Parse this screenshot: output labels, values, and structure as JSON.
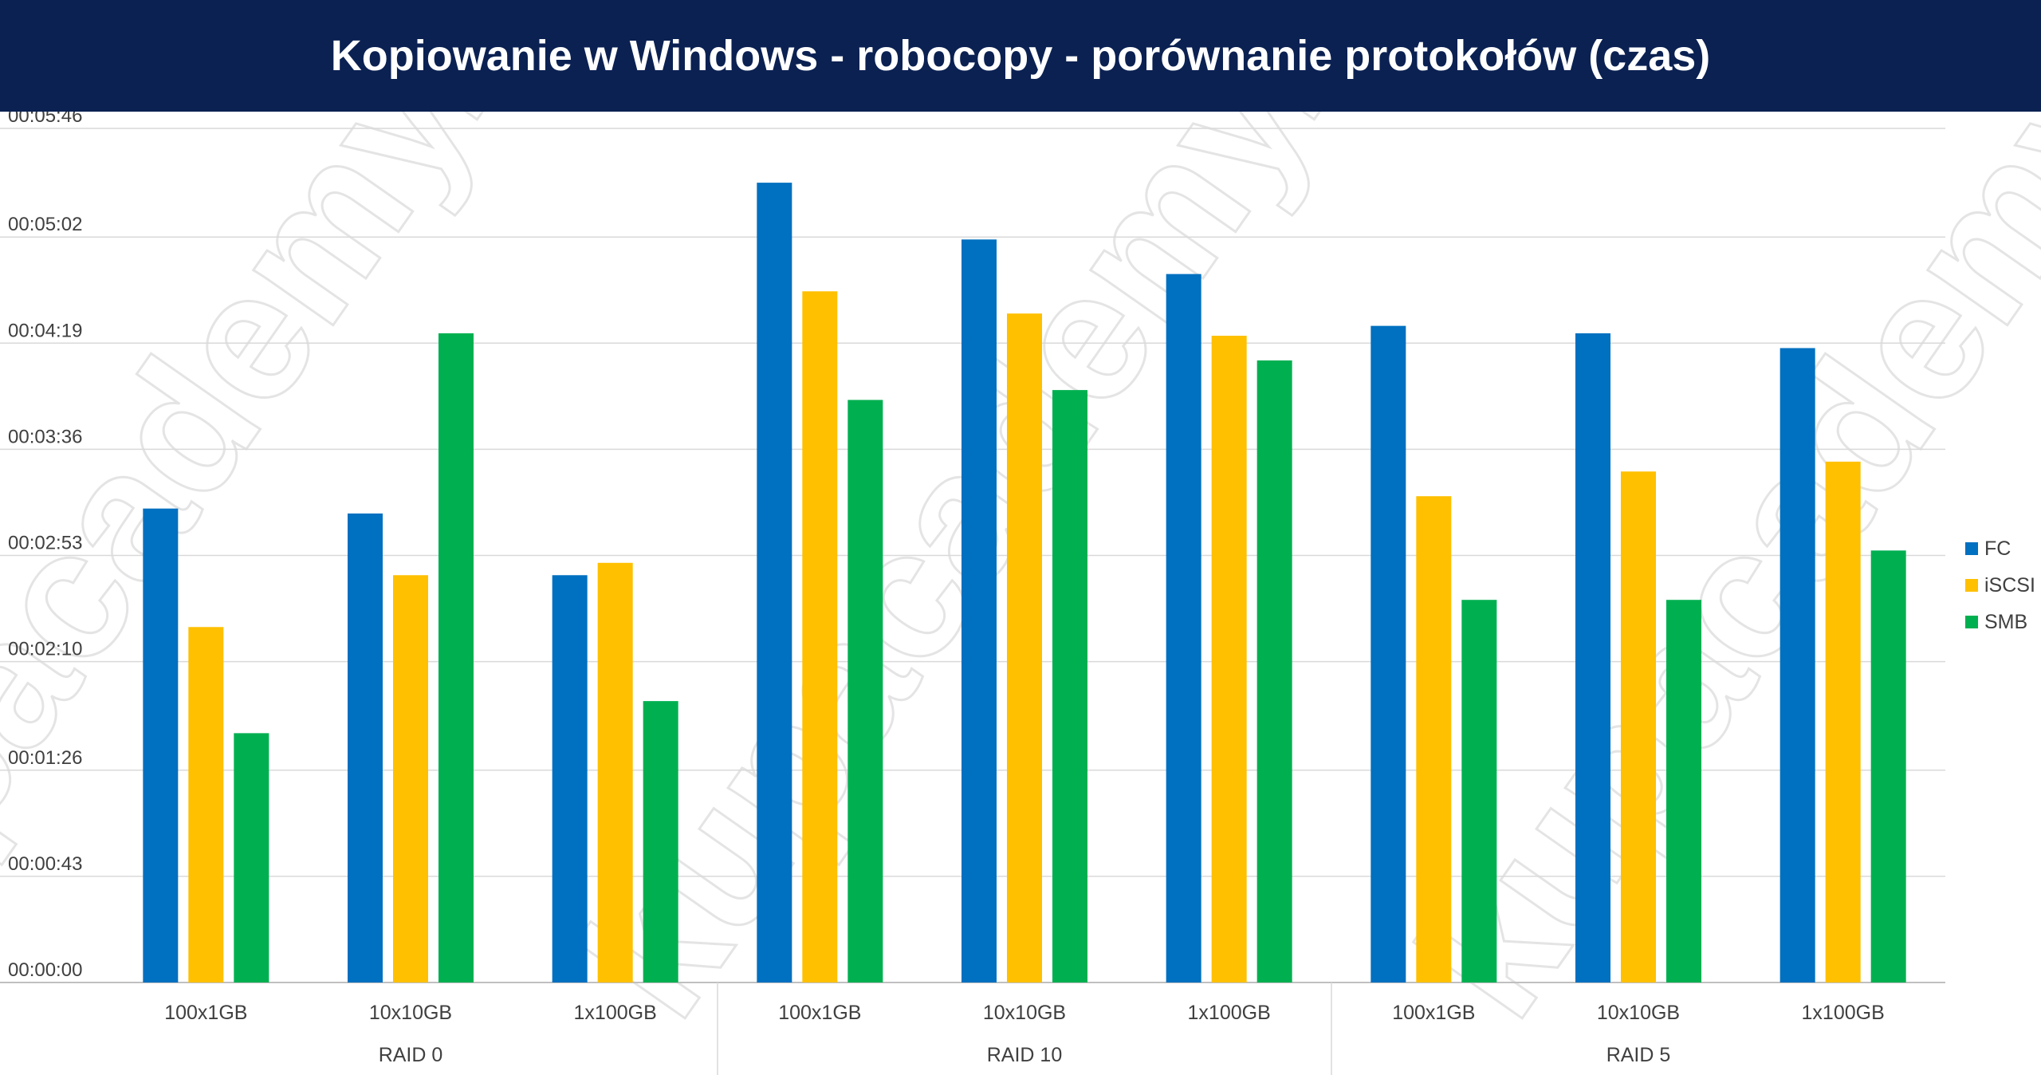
{
  "title": "Kopiowanie w Windows - robocopy - porównanie protokołów (czas)",
  "watermark": "kupacademy.pl",
  "chart_data": {
    "type": "bar",
    "title": "Kopiowanie w Windows - robocopy - porównanie protokołów (czas)",
    "xlabel": "",
    "ylabel": "",
    "ylim": [
      0,
      346
    ],
    "grid": true,
    "legend_position": "right",
    "y_ticks": [
      0,
      43,
      86,
      130,
      173,
      216,
      259,
      302,
      346
    ],
    "y_tick_labels": [
      "00:00:00",
      "00:00:43",
      "00:01:26",
      "00:02:10",
      "00:02:53",
      "00:03:36",
      "00:04:19",
      "00:05:02",
      "00:05:46"
    ],
    "categories": [
      "100x1GB",
      "10x10GB",
      "1x100GB",
      "100x1GB",
      "10x10GB",
      "1x100GB",
      "100x1GB",
      "10x10GB",
      "1x100GB"
    ],
    "groups": [
      {
        "label": "RAID 0",
        "categories": [
          0,
          1,
          2
        ]
      },
      {
        "label": "RAID 10",
        "categories": [
          3,
          4,
          5
        ]
      },
      {
        "label": "RAID 5",
        "categories": [
          6,
          7,
          8
        ]
      }
    ],
    "series": [
      {
        "name": "FC",
        "color": "#0070c0",
        "values": [
          192,
          190,
          165,
          324,
          301,
          287,
          266,
          263,
          257
        ]
      },
      {
        "name": "iSCSI",
        "color": "#ffc000",
        "values": [
          144,
          165,
          170,
          280,
          271,
          262,
          197,
          207,
          211
        ]
      },
      {
        "name": "SMB",
        "color": "#00b050",
        "values": [
          101,
          263,
          114,
          236,
          240,
          252,
          155,
          155,
          175
        ]
      }
    ]
  }
}
